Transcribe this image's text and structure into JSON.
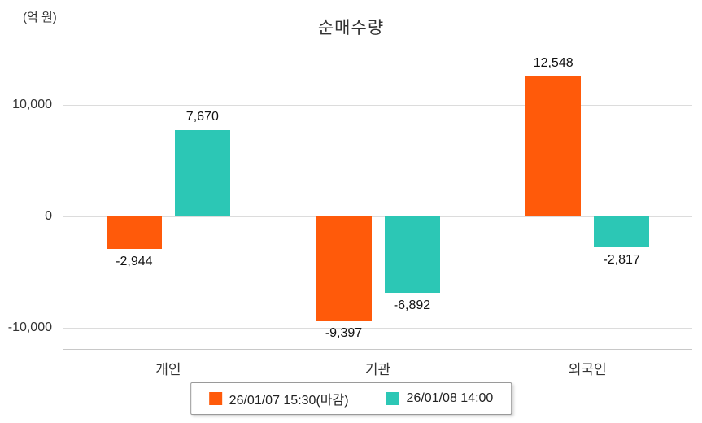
{
  "chart_data": {
    "type": "bar",
    "title": "순매수량",
    "unit_label": "(억 원)",
    "categories": [
      "개인",
      "기관",
      "외국인"
    ],
    "series": [
      {
        "name": "26/01/07 15:30(마감)",
        "color": "#ff5a0a",
        "values": [
          -2944,
          -9397,
          12548
        ]
      },
      {
        "name": "26/01/08 14:00",
        "color": "#2cc7b5",
        "values": [
          7670,
          -6892,
          -2817
        ]
      }
    ],
    "value_labels": [
      [
        "-2,944",
        "-9,397",
        "12,548"
      ],
      [
        "7,670",
        "-6,892",
        "-2,817"
      ]
    ],
    "yticks": [
      {
        "value": 10000,
        "label": "10,000"
      },
      {
        "value": 0,
        "label": "0"
      },
      {
        "value": -10000,
        "label": "-10,000"
      }
    ],
    "ylim": [
      -12000,
      15000
    ],
    "xlabel": "",
    "ylabel": "(억 원)",
    "grid": true,
    "legend_position": "bottom"
  }
}
